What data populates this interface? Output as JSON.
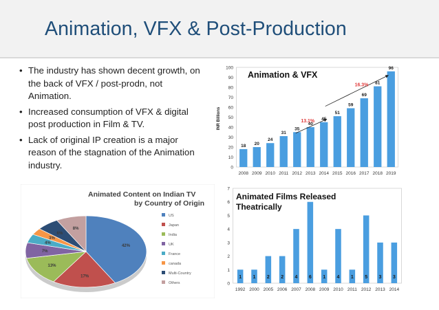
{
  "slide": {
    "title": "Animation, VFX & Post-Production",
    "bullets": [
      "The industry has shown decent growth, on the back of VFX / post-prodn, not Animation.",
      "Increased consumption of VFX & digital post production in Film & TV.",
      "Lack of original IP creation is a major reason of the stagnation of the Animation industry."
    ]
  },
  "colors": {
    "title": "#1f4e79",
    "bar": "#4a9ee0",
    "cagr_text": "#e03c3c"
  },
  "chart_data": [
    {
      "type": "bar",
      "title": "Animation & VFX",
      "ylabel": "INR Billions",
      "xlabel": "",
      "ylim": [
        0,
        100
      ],
      "yticks": [
        0,
        10,
        20,
        30,
        40,
        50,
        60,
        70,
        80,
        90,
        100
      ],
      "categories": [
        "2008",
        "2009",
        "2010",
        "2011",
        "2012",
        "2013",
        "2014",
        "2015",
        "2016",
        "2017",
        "2018",
        "2019"
      ],
      "values": [
        18,
        20,
        24,
        31,
        35,
        40,
        45,
        51,
        59,
        69,
        81,
        96
      ],
      "annotations": [
        {
          "text": "13.1%",
          "from": "2012",
          "to": "2014"
        },
        {
          "text": "16.3%",
          "from": "2014",
          "to": "2019"
        }
      ]
    },
    {
      "type": "pie",
      "title": "Animated Content on Indian TV by Country of Origin",
      "slices": [
        {
          "label": "US",
          "value": 42,
          "color": "#4f81bd"
        },
        {
          "label": "Japan",
          "value": 17,
          "color": "#c0504d"
        },
        {
          "label": "India",
          "value": 13,
          "color": "#9bbb59"
        },
        {
          "label": "UK",
          "value": 7,
          "color": "#8064a2"
        },
        {
          "label": "France",
          "value": 4,
          "color": "#4bacc6"
        },
        {
          "label": "canada",
          "value": 3,
          "color": "#f79646"
        },
        {
          "label": "Multi-Country",
          "value": 6,
          "color": "#2c4d75"
        },
        {
          "label": "Others",
          "value": 8,
          "color": "#c3a0a0"
        }
      ]
    },
    {
      "type": "bar",
      "title": "Animated Films Released Theatrically",
      "xlabel": "",
      "ylabel": "",
      "ylim": [
        0,
        7
      ],
      "yticks": [
        0,
        1,
        2,
        3,
        4,
        5,
        6,
        7
      ],
      "categories": [
        "1992",
        "2000",
        "2005",
        "2006",
        "2007",
        "2008",
        "2009",
        "2010",
        "2011",
        "2012",
        "2013",
        "2014"
      ],
      "values": [
        1,
        1,
        2,
        2,
        4,
        6,
        1,
        4,
        1,
        5,
        3,
        3
      ]
    }
  ]
}
